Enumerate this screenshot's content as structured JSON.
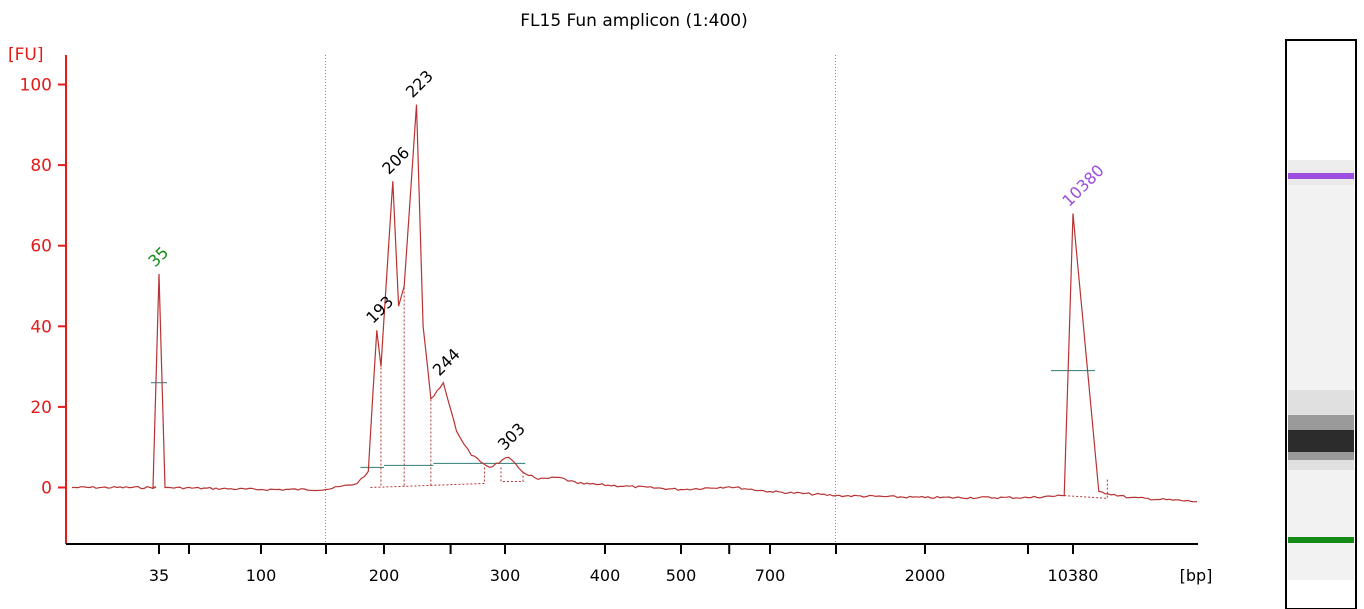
{
  "chart_data": {
    "type": "line",
    "title": "FL15 Fun amplicon (1:400)",
    "ylabel": "[FU]",
    "xlabel": "[bp]",
    "ylim": [
      -13,
      105
    ],
    "y_ticks": [
      0,
      20,
      40,
      60,
      80,
      100
    ],
    "x_tick_labels": [
      "35",
      "100",
      "200",
      "300",
      "400",
      "500",
      "700",
      "2000",
      "10380"
    ],
    "x_scale": "bp sizing (non-linear)",
    "grid": false,
    "series": [
      {
        "values": [
          [
            35,
            0
          ],
          [
            35,
            53
          ],
          [
            35,
            0
          ],
          [
            100,
            -0.5
          ],
          [
            150,
            -0.5
          ],
          [
            175,
            1
          ],
          [
            185,
            4
          ],
          [
            193,
            39
          ],
          [
            197,
            30
          ],
          [
            200,
            42
          ],
          [
            206,
            76
          ],
          [
            210,
            45
          ],
          [
            214,
            50
          ],
          [
            218,
            70
          ],
          [
            223,
            95
          ],
          [
            228,
            40
          ],
          [
            234,
            22
          ],
          [
            244,
            26
          ],
          [
            255,
            14
          ],
          [
            268,
            8
          ],
          [
            285,
            5
          ],
          [
            303,
            7.5
          ],
          [
            315,
            4
          ],
          [
            330,
            2
          ],
          [
            350,
            2.5
          ],
          [
            370,
            1
          ],
          [
            500,
            -0.5
          ],
          [
            600,
            0.2
          ],
          [
            700,
            -1
          ],
          [
            1000,
            -2
          ],
          [
            2000,
            -2.5
          ],
          [
            5000,
            -2.5
          ],
          [
            9000,
            -2
          ],
          [
            10380,
            68
          ],
          [
            11500,
            -1
          ],
          [
            13000,
            -2.5
          ],
          [
            17000,
            -3.5
          ]
        ]
      }
    ],
    "peaks": [
      {
        "label": "35",
        "fu": 53,
        "color": "#168a16"
      },
      {
        "label": "193",
        "fu": 39,
        "color": "#000000"
      },
      {
        "label": "206",
        "fu": 76,
        "color": "#000000"
      },
      {
        "label": "223",
        "fu": 95,
        "color": "#000000"
      },
      {
        "label": "244",
        "fu": 26,
        "color": "#000000"
      },
      {
        "label": "303",
        "fu": 7.5,
        "color": "#000000"
      },
      {
        "label": "10380",
        "fu": 68,
        "color": "#9b4de0"
      }
    ],
    "colors": {
      "axis": "#e31b1b",
      "trace": "#b83333",
      "lower_marker": "#168a16",
      "upper_marker": "#9b4de0"
    }
  }
}
